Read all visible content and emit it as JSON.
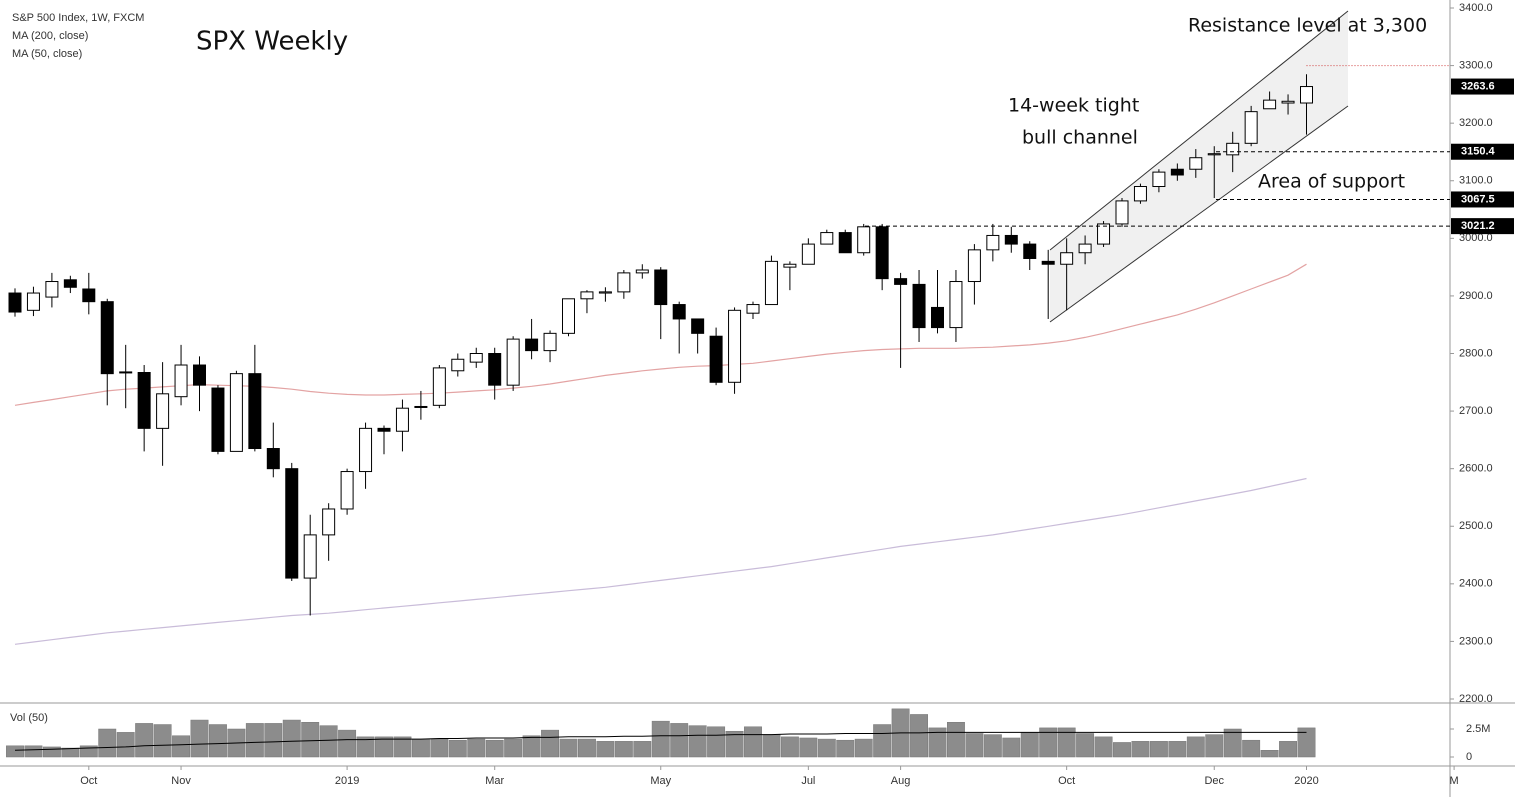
{
  "chart_data": [
    {
      "type": "candlestick",
      "title": "SPX Weekly",
      "subtitle": "S&P 500 Index, 1W, FXCM",
      "annotations": [
        "Resistance level at 3,300",
        "14-week tight",
        "bull channel",
        "Area of support"
      ],
      "up_color": "#ffffff",
      "down_color": "#000000",
      "ylim": [
        2200,
        3400
      ],
      "yticks": [
        {
          "value": 3400,
          "label": "3400.0"
        },
        {
          "value": 3300,
          "label": "3300.0"
        },
        {
          "value": 3200,
          "label": "3200.0"
        },
        {
          "value": 3100,
          "label": "3100.0"
        },
        {
          "value": 3000,
          "label": "3000.0"
        },
        {
          "value": 2900,
          "label": "2900.0"
        },
        {
          "value": 2800,
          "label": "2800.0"
        },
        {
          "value": 2700,
          "label": "2700.0"
        },
        {
          "value": 2600,
          "label": "2600.0"
        },
        {
          "value": 2500,
          "label": "2500.0"
        },
        {
          "value": 2400,
          "label": "2400.0"
        },
        {
          "value": 2300,
          "label": "2300.0"
        },
        {
          "value": 2200,
          "label": "2200.0"
        }
      ],
      "grid": false,
      "open": [
        2905,
        2875,
        2898,
        2928,
        2912,
        2890,
        2768,
        2767,
        2670,
        2725,
        2780,
        2740,
        2630,
        2765,
        2635,
        2600,
        2410,
        2485,
        2530,
        2595,
        2670,
        2665,
        2707,
        2710,
        2770,
        2785,
        2800,
        2745,
        2825,
        2805,
        2835,
        2895,
        2905,
        2907,
        2940,
        2945,
        2885,
        2860,
        2830,
        2750,
        2870,
        2885,
        2950,
        2955,
        2990,
        3010,
        2975,
        3020,
        2930,
        2920,
        2880,
        2845,
        2925,
        2980,
        3005,
        2990,
        2960,
        2955,
        2975,
        2990,
        3025,
        3065,
        3090,
        3120,
        3120,
        3145,
        3145,
        3165,
        3225,
        3235,
        3235
      ],
      "high": [
        2913,
        2916,
        2940,
        2935,
        2940,
        2895,
        2815,
        2780,
        2785,
        2815,
        2795,
        2745,
        2770,
        2815,
        2680,
        2610,
        2520,
        2540,
        2600,
        2680,
        2675,
        2720,
        2735,
        2780,
        2800,
        2810,
        2810,
        2830,
        2860,
        2840,
        2895,
        2910,
        2915,
        2945,
        2955,
        2950,
        2890,
        2860,
        2845,
        2880,
        2890,
        2970,
        2960,
        3000,
        3015,
        3015,
        3025,
        3025,
        2940,
        2945,
        2945,
        2945,
        2990,
        3025,
        3020,
        2995,
        2980,
        3000,
        3005,
        3030,
        3070,
        3095,
        3120,
        3130,
        3155,
        3160,
        3185,
        3230,
        3255,
        3250,
        3285
      ],
      "low": [
        2864,
        2865,
        2880,
        2905,
        2868,
        2710,
        2705,
        2630,
        2605,
        2710,
        2700,
        2625,
        2630,
        2630,
        2585,
        2405,
        2345,
        2440,
        2520,
        2565,
        2625,
        2630,
        2685,
        2705,
        2760,
        2775,
        2720,
        2735,
        2790,
        2785,
        2830,
        2870,
        2890,
        2895,
        2930,
        2825,
        2800,
        2800,
        2745,
        2730,
        2860,
        2885,
        2910,
        2955,
        2990,
        2975,
        2970,
        2910,
        2775,
        2820,
        2835,
        2820,
        2885,
        2960,
        2975,
        2945,
        2860,
        2875,
        2955,
        2985,
        3020,
        3060,
        3080,
        3100,
        3105,
        3070,
        3115,
        3160,
        3225,
        3215,
        3180
      ],
      "close": [
        2872,
        2905,
        2925,
        2915,
        2890,
        2765,
        2767,
        2670,
        2730,
        2780,
        2745,
        2630,
        2765,
        2635,
        2600,
        2410,
        2485,
        2530,
        2595,
        2670,
        2665,
        2705,
        2708,
        2775,
        2790,
        2800,
        2745,
        2825,
        2805,
        2835,
        2895,
        2907,
        2907,
        2940,
        2945,
        2885,
        2860,
        2835,
        2750,
        2875,
        2885,
        2960,
        2955,
        2990,
        3010,
        2975,
        3020,
        2930,
        2920,
        2845,
        2845,
        2925,
        2980,
        3005,
        2990,
        2965,
        2955,
        2975,
        2990,
        3025,
        3065,
        3090,
        3115,
        3110,
        3140,
        3147,
        3165,
        3220,
        3240,
        3238,
        3263.6
      ],
      "lines": [
        {
          "name": "MA (200, close)",
          "color": "#c9bcd9",
          "values": [
            2295,
            2299,
            2303,
            2307,
            2311,
            2315,
            2318,
            2321,
            2324,
            2327,
            2330,
            2333,
            2336,
            2339,
            2342,
            2345,
            2347,
            2349,
            2352,
            2355,
            2358,
            2361,
            2364,
            2367,
            2370,
            2373,
            2376,
            2379,
            2382,
            2385,
            2388,
            2391,
            2394,
            2398,
            2402,
            2406,
            2410,
            2414,
            2418,
            2422,
            2426,
            2430,
            2435,
            2440,
            2445,
            2450,
            2455,
            2460,
            2465,
            2469,
            2473,
            2477,
            2481,
            2485,
            2490,
            2495,
            2500,
            2505,
            2510,
            2515,
            2520,
            2526,
            2532,
            2538,
            2544,
            2550,
            2556,
            2562,
            2569,
            2576,
            2583
          ]
        },
        {
          "name": "MA (50, close)",
          "color": "#e3a3a3",
          "values": [
            2710,
            2715,
            2720,
            2725,
            2730,
            2735,
            2738,
            2740,
            2742,
            2744,
            2746,
            2745,
            2744,
            2743,
            2741,
            2738,
            2734,
            2731,
            2729,
            2728,
            2728,
            2729,
            2730,
            2731,
            2733,
            2735,
            2737,
            2740,
            2743,
            2747,
            2752,
            2757,
            2762,
            2766,
            2770,
            2773,
            2776,
            2778,
            2779,
            2781,
            2783,
            2787,
            2791,
            2795,
            2799,
            2802,
            2805,
            2807,
            2808,
            2809,
            2809,
            2809,
            2810,
            2811,
            2813,
            2815,
            2818,
            2822,
            2828,
            2835,
            2843,
            2851,
            2859,
            2867,
            2877,
            2888,
            2900,
            2912,
            2924,
            2936,
            2955
          ]
        }
      ],
      "last_price": 3263.6,
      "resistance_level": 3300,
      "support_levels": [
        3150.4,
        3067.5,
        3021.2
      ]
    },
    {
      "type": "bar",
      "title": "Vol (50)",
      "color": "#8c8c8c",
      "categories": [
        null,
        null,
        null,
        null,
        "Oct",
        null,
        null,
        null,
        null,
        "Nov",
        null,
        null,
        null,
        null,
        null,
        null,
        null,
        null,
        "2019",
        null,
        null,
        null,
        null,
        null,
        null,
        null,
        "Mar",
        null,
        null,
        null,
        null,
        null,
        null,
        null,
        null,
        "May",
        null,
        null,
        null,
        null,
        null,
        null,
        null,
        "Jul",
        null,
        null,
        null,
        null,
        "Aug",
        null,
        null,
        null,
        null,
        null,
        null,
        null,
        null,
        "Oct",
        null,
        null,
        null,
        null,
        null,
        null,
        null,
        "Dec",
        null,
        null,
        null,
        null,
        "2020",
        null,
        null,
        null,
        null,
        null,
        null,
        null,
        "M"
      ],
      "values": [
        1.0,
        1.0,
        0.9,
        0.8,
        1.0,
        2.5,
        2.2,
        3.0,
        2.9,
        1.9,
        3.3,
        2.9,
        2.5,
        3.0,
        3.0,
        3.3,
        3.1,
        2.8,
        2.4,
        1.8,
        1.8,
        1.8,
        1.6,
        1.6,
        1.5,
        1.6,
        1.5,
        1.6,
        1.9,
        2.4,
        1.6,
        1.6,
        1.4,
        1.4,
        1.4,
        3.2,
        3.0,
        2.8,
        2.7,
        2.3,
        2.7,
        2.0,
        1.8,
        1.7,
        1.6,
        1.5,
        1.6,
        2.9,
        4.3,
        3.8,
        2.6,
        3.1,
        2.1,
        2.0,
        1.7,
        2.2,
        2.6,
        2.6,
        2.1,
        1.8,
        1.3,
        1.4,
        1.4,
        1.4,
        1.8,
        2.0,
        2.5,
        1.5,
        0.6,
        1.4,
        2.6,
        null,
        null,
        null,
        null,
        null,
        null,
        null,
        null
      ],
      "ma": {
        "color": "#000000",
        "values": [
          0.6,
          0.65,
          0.7,
          0.75,
          0.8,
          0.85,
          0.9,
          1.0,
          1.05,
          1.1,
          1.15,
          1.2,
          1.25,
          1.3,
          1.35,
          1.4,
          1.45,
          1.5,
          1.55,
          1.55,
          1.6,
          1.6,
          1.6,
          1.65,
          1.65,
          1.7,
          1.7,
          1.7,
          1.75,
          1.75,
          1.8,
          1.8,
          1.8,
          1.85,
          1.85,
          1.9,
          1.9,
          1.95,
          1.95,
          2.0,
          2.0,
          2.0,
          2.05,
          2.05,
          2.05,
          2.1,
          2.1,
          2.1,
          2.15,
          2.15,
          2.2,
          2.2,
          2.2,
          2.2,
          2.2,
          2.2,
          2.2,
          2.2,
          2.2,
          2.2,
          2.2,
          2.2,
          2.2,
          2.2,
          2.2,
          2.2,
          2.2,
          2.2,
          2.2,
          2.2,
          2.2,
          null,
          null,
          null,
          null,
          null,
          null,
          null,
          null
        ]
      },
      "ylim": [
        0,
        4.5
      ],
      "yticks": [
        {
          "value": 2.5,
          "label": "2.5M"
        },
        0
      ]
    }
  ]
}
